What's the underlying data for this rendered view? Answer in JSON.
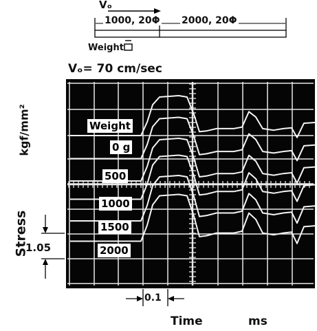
{
  "rod": {
    "velocity_symbol": "Vₒ",
    "segment1": "1000, 20Φ",
    "segment2": "2000, 20Φ",
    "weight_label": "Weight"
  },
  "velocity_label": "Vₒ= 70 cm/sec",
  "y_axis": {
    "quantity": "Stress",
    "unit": "kgf/mm²",
    "scale_value": "1.05"
  },
  "x_axis": {
    "quantity": "Time",
    "unit": "ms",
    "scale_value": "0.1"
  },
  "trace_labels": [
    "Weight",
    "0 g",
    "500",
    "1000",
    "1500",
    "2000"
  ],
  "colors": {
    "screen": "#050505",
    "grid": "#e8e8e8",
    "trace": "#f4f4f4"
  }
}
